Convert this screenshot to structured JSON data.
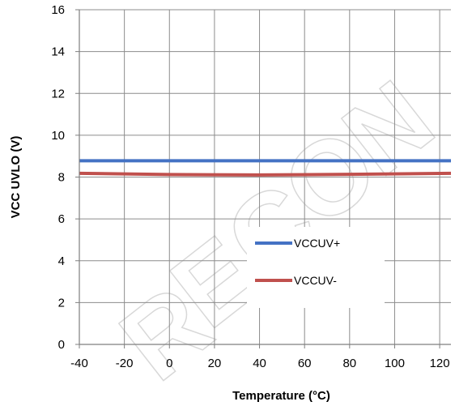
{
  "chart_data": {
    "type": "line",
    "title": "",
    "xlabel": "Temperature (°C)",
    "ylabel": "VCC UVLO (V)",
    "xlim": [
      -40,
      125
    ],
    "ylim": [
      0,
      16
    ],
    "xticks": [
      -40,
      -20,
      0,
      20,
      40,
      60,
      80,
      100,
      120
    ],
    "yticks": [
      0,
      2,
      4,
      6,
      8,
      10,
      12,
      14,
      16
    ],
    "grid": true,
    "legend_position": "bottom-center",
    "series": [
      {
        "name": "VCCUV+",
        "color": "#4472c4",
        "x": [
          -40,
          0,
          40,
          80,
          125
        ],
        "y": [
          8.78,
          8.78,
          8.78,
          8.78,
          8.78
        ]
      },
      {
        "name": "VCCUV-",
        "color": "#c0504d",
        "x": [
          -40,
          0,
          40,
          80,
          125
        ],
        "y": [
          8.18,
          8.12,
          8.1,
          8.13,
          8.18
        ]
      }
    ]
  },
  "watermark": {
    "text": "RECON"
  }
}
